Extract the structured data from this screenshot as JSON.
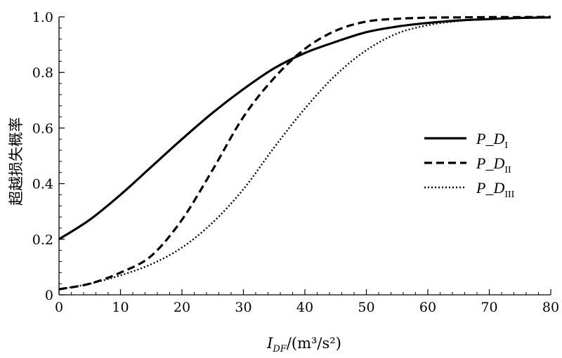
{
  "chart_data": {
    "type": "line",
    "xlabel": {
      "main": "I",
      "sub": "DF",
      "units": "/(m³/s²)"
    },
    "ylabel": "超越损失概率",
    "xlim": [
      0,
      80
    ],
    "ylim": [
      0,
      1.0
    ],
    "x_ticks": [
      0,
      10,
      20,
      30,
      40,
      50,
      60,
      70,
      80
    ],
    "y_ticks": [
      "0",
      "0.2",
      "0.4",
      "0.6",
      "0.8",
      "1.0"
    ],
    "y_tick_values": [
      0,
      0.2,
      0.4,
      0.6,
      0.8,
      1.0
    ],
    "x_minor_step": 2,
    "y_minor_step": 0.04,
    "grid": false,
    "legend_position": "right",
    "series": [
      {
        "name": "P_D",
        "subscript": "I",
        "style": "solid",
        "x": [
          0,
          5,
          10,
          15,
          20,
          25,
          30,
          35,
          40,
          45,
          50,
          55,
          60,
          65,
          70,
          75,
          80
        ],
        "y": [
          0.2,
          0.27,
          0.36,
          0.46,
          0.56,
          0.655,
          0.74,
          0.815,
          0.87,
          0.91,
          0.945,
          0.965,
          0.978,
          0.987,
          0.992,
          0.996,
          0.998
        ]
      },
      {
        "name": "P_D",
        "subscript": "II",
        "style": "dashed",
        "x": [
          0,
          5,
          10,
          15,
          20,
          25,
          30,
          35,
          40,
          45,
          50,
          55,
          60,
          65,
          70,
          75,
          80
        ],
        "y": [
          0.02,
          0.04,
          0.08,
          0.14,
          0.27,
          0.45,
          0.64,
          0.78,
          0.885,
          0.95,
          0.983,
          0.993,
          0.997,
          0.998,
          0.999,
          0.999,
          1.0
        ]
      },
      {
        "name": "P_D",
        "subscript": "III",
        "style": "dotted",
        "x": [
          0,
          5,
          10,
          15,
          20,
          25,
          30,
          35,
          40,
          45,
          50,
          55,
          60,
          65,
          70,
          75,
          80
        ],
        "y": [
          0.02,
          0.04,
          0.07,
          0.11,
          0.17,
          0.26,
          0.38,
          0.53,
          0.67,
          0.79,
          0.88,
          0.94,
          0.97,
          0.985,
          0.993,
          0.997,
          0.999
        ]
      }
    ]
  }
}
